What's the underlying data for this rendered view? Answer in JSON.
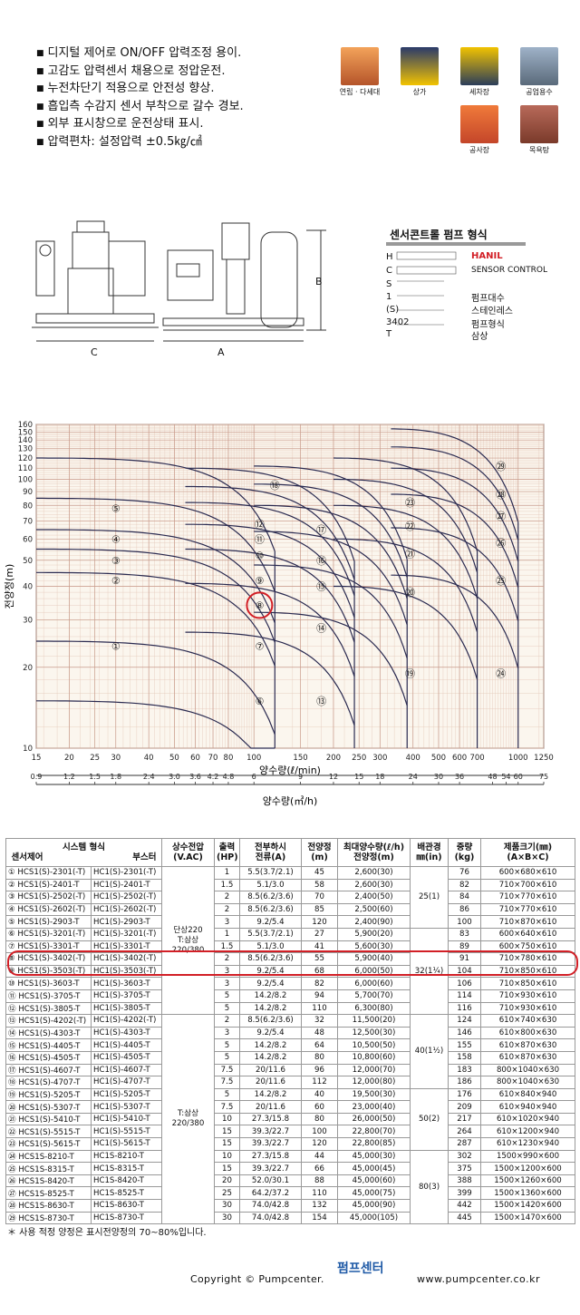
{
  "features": [
    "디지털 제어로 ON/OFF 압력조정 용이.",
    "고감도 압력센서 채용으로 정압운전.",
    "누전차단기 적용으로 안전성 향상.",
    "흡입측 수감지 센서 부착으로 갈수 경보.",
    "외부 표시창으로 운전상태 표시.",
    "압력편차: 설정압력 ±0.5㎏/㎠"
  ],
  "applications": [
    {
      "label": "연립 · 다세대",
      "color": "#b5542a"
    },
    {
      "label": "상가",
      "color": "#f2c300"
    },
    {
      "label": "세차장",
      "color": "#2b3d5a"
    },
    {
      "label": "공업용수",
      "color": "#5a6a7a"
    },
    {
      "label": "공사장",
      "color": "#c4462a"
    },
    {
      "label": "목욕탕",
      "color": "#7a3a2a"
    }
  ],
  "drawing": {
    "label_b": "B",
    "label_c": "C",
    "label_a": "A"
  },
  "model_code": {
    "title": "센서콘트롤 펌프 형식",
    "rows": [
      {
        "code": "H",
        "desc": "HANIL",
        "accent": "#d21f26"
      },
      {
        "code": "C",
        "desc": "SENSOR CONTROL"
      },
      {
        "code": "S",
        "desc": ""
      },
      {
        "code": "1",
        "desc": "펌프대수"
      },
      {
        "code": "(S)",
        "desc": "스테인레스"
      },
      {
        "code": "3402",
        "desc": "펌프형식"
      },
      {
        "code": "T",
        "desc": "삼상"
      }
    ]
  },
  "chart_data": {
    "type": "performance-curve",
    "ylabel": "전양정(m)",
    "yticks": [
      10,
      20,
      30,
      40,
      50,
      60,
      70,
      80,
      90,
      100,
      110,
      120,
      130,
      140,
      150,
      160
    ],
    "y_scale": "log",
    "ylim": [
      10,
      160
    ],
    "xlabel_top": "양수량(ℓ/min)",
    "xticks_top": [
      15,
      20,
      25,
      30,
      40,
      50,
      60,
      70,
      80,
      100,
      150,
      200,
      250,
      300,
      400,
      500,
      600,
      700,
      1000,
      1250
    ],
    "xlabel_bottom": "양수량(㎥/h)",
    "xticks_bottom": [
      "0.9",
      "1.2",
      "1.5",
      "1.8",
      "2.4",
      "3.0",
      "3.6",
      "4.2",
      "4.8",
      "6",
      "9",
      "12",
      "15",
      "18",
      "24",
      "30",
      "36",
      "48",
      "54",
      "60",
      "75"
    ],
    "x_scale": "log",
    "xlim": [
      15,
      1250
    ],
    "grid": true,
    "highlight": "⑧",
    "regions": [
      {
        "label": "①",
        "x": 30,
        "y": 24
      },
      {
        "label": "②",
        "x": 30,
        "y": 42
      },
      {
        "label": "③",
        "x": 30,
        "y": 50
      },
      {
        "label": "④",
        "x": 30,
        "y": 60
      },
      {
        "label": "⑤",
        "x": 30,
        "y": 78
      },
      {
        "label": "⑥",
        "x": 105,
        "y": 15
      },
      {
        "label": "⑦",
        "x": 105,
        "y": 24
      },
      {
        "label": "⑧",
        "x": 105,
        "y": 34
      },
      {
        "label": "⑨",
        "x": 105,
        "y": 42
      },
      {
        "label": "⑩",
        "x": 105,
        "y": 52
      },
      {
        "label": "⑪",
        "x": 105,
        "y": 60
      },
      {
        "label": "⑫",
        "x": 105,
        "y": 68
      },
      {
        "label": "⑬",
        "x": 180,
        "y": 15
      },
      {
        "label": "⑭",
        "x": 180,
        "y": 28
      },
      {
        "label": "⑮",
        "x": 180,
        "y": 40
      },
      {
        "label": "⑯",
        "x": 180,
        "y": 50
      },
      {
        "label": "⑰",
        "x": 180,
        "y": 65
      },
      {
        "label": "⑱",
        "x": 120,
        "y": 95
      },
      {
        "label": "⑲",
        "x": 390,
        "y": 19
      },
      {
        "label": "⑳",
        "x": 390,
        "y": 38
      },
      {
        "label": "㉑",
        "x": 390,
        "y": 53
      },
      {
        "label": "㉒",
        "x": 390,
        "y": 67
      },
      {
        "label": "㉓",
        "x": 390,
        "y": 82
      },
      {
        "label": "㉔",
        "x": 860,
        "y": 19
      },
      {
        "label": "㉕",
        "x": 860,
        "y": 42
      },
      {
        "label": "㉖",
        "x": 860,
        "y": 58
      },
      {
        "label": "㉗",
        "x": 860,
        "y": 73
      },
      {
        "label": "㉘",
        "x": 860,
        "y": 88
      },
      {
        "label": "㉙",
        "x": 860,
        "y": 112
      }
    ]
  },
  "table": {
    "header": {
      "system_type": "시스템 형식",
      "sensor": "센서제어",
      "booster": "부스터",
      "power": "상수전압",
      "power_unit": "(V.AC)",
      "output": "출력",
      "output_unit": "(HP)",
      "current": "전부하시",
      "current2": "전류(A)",
      "head": "전양정",
      "head_unit": "(m)",
      "flow": "최대양수량(ℓ/h)",
      "flow2": "전양정(m)",
      "pipe": "배관경",
      "pipe_unit": "㎜(in)",
      "weight": "중량",
      "weight_unit": "(kg)",
      "size": "제품크기(㎜)",
      "size_unit": "(A×B×C)"
    },
    "rows": [
      [
        "① HCS1(S)-2301(-T)",
        "HC1(S)-2301(-T)",
        "1",
        "5.5(3.7/2.1)",
        "45",
        "2,600(30)",
        "76",
        "600×680×610"
      ],
      [
        "② HCS1(S)-2401-T",
        "HC1(S)-2401-T",
        "1.5",
        "5.1/3.0",
        "58",
        "2,600(30)",
        "82",
        "710×700×610"
      ],
      [
        "③ HCS1(S)-2502(-T)",
        "HC1(S)-2502(-T)",
        "2",
        "8.5(6.2/3.6)",
        "70",
        "2,400(50)",
        "84",
        "710×770×610"
      ],
      [
        "④ HCS1(S)-2602(-T)",
        "HC1(S)-2602(-T)",
        "2",
        "8.5(6.2/3.6)",
        "85",
        "2,500(60)",
        "86",
        "710×770×610"
      ],
      [
        "⑤ HCS1(S)-2903-T",
        "HC1(S)-2903-T",
        "3",
        "9.2/5.4",
        "120",
        "2,400(90)",
        "100",
        "710×870×610"
      ],
      [
        "⑥ HCS1(S)-3201(-T)",
        "HC1(S)-3201(-T)",
        "1",
        "5.5(3.7/2.1)",
        "27",
        "5,900(20)",
        "83",
        "600×640×610"
      ],
      [
        "⑦ HCS1(S)-3301-T",
        "HC1(S)-3301-T",
        "1.5",
        "5.1/3.0",
        "41",
        "5,600(30)",
        "89",
        "600×750×610"
      ],
      [
        "⑧ HCS1(S)-3402(-T)",
        "HC1(S)-3402(-T)",
        "2",
        "8.5(6.2/3.6)",
        "55",
        "5,900(40)",
        "91",
        "710×780×610"
      ],
      [
        "⑨ HCS1(S)-3503(-T)",
        "HC1(S)-3503(-T)",
        "3",
        "9.2/5.4",
        "68",
        "6,000(50)",
        "104",
        "710×850×610"
      ],
      [
        "⑩ HCS1(S)-3603-T",
        "HC1(S)-3603-T",
        "3",
        "9.2/5.4",
        "82",
        "6,000(60)",
        "106",
        "710×850×610"
      ],
      [
        "⑪ HCS1(S)-3705-T",
        "HC1(S)-3705-T",
        "5",
        "14.2/8.2",
        "94",
        "5,700(70)",
        "114",
        "710×930×610"
      ],
      [
        "⑫ HCS1(S)-3805-T",
        "HC1(S)-3805-T",
        "5",
        "14.2/8.2",
        "110",
        "6,300(80)",
        "116",
        "710×930×610"
      ],
      [
        "⑬ HCS1(S)-4202(-T)",
        "HC1(S)-4202(-T)",
        "2",
        "8.5(6.2/3.6)",
        "32",
        "11,500(20)",
        "124",
        "610×740×630"
      ],
      [
        "⑭ HCS1(S)-4303-T",
        "HC1(S)-4303-T",
        "3",
        "9.2/5.4",
        "48",
        "12,500(30)",
        "146",
        "610×800×630"
      ],
      [
        "⑮ HCS1(S)-4405-T",
        "HC1(S)-4405-T",
        "5",
        "14.2/8.2",
        "64",
        "10,500(50)",
        "155",
        "610×870×630"
      ],
      [
        "⑯ HCS1(S)-4505-T",
        "HC1(S)-4505-T",
        "5",
        "14.2/8.2",
        "80",
        "10,800(60)",
        "158",
        "610×870×630"
      ],
      [
        "⑰ HCS1(S)-4607-T",
        "HC1(S)-4607-T",
        "7.5",
        "20/11.6",
        "96",
        "12,000(70)",
        "183",
        "800×1040×630"
      ],
      [
        "⑱ HCS1(S)-4707-T",
        "HC1(S)-4707-T",
        "7.5",
        "20/11.6",
        "112",
        "12,000(80)",
        "186",
        "800×1040×630"
      ],
      [
        "⑲ HCS1(S)-5205-T",
        "HC1(S)-5205-T",
        "5",
        "14.2/8.2",
        "40",
        "19,500(30)",
        "176",
        "610×840×940"
      ],
      [
        "⑳ HCS1(S)-5307-T",
        "HC1(S)-5307-T",
        "7.5",
        "20/11.6",
        "60",
        "23,000(40)",
        "209",
        "610×940×940"
      ],
      [
        "㉑ HCS1(S)-5410-T",
        "HC1(S)-5410-T",
        "10",
        "27.3/15.8",
        "80",
        "26,000(50)",
        "217",
        "610×1020×940"
      ],
      [
        "㉒ HCS1(S)-5515-T",
        "HC1(S)-5515-T",
        "15",
        "39.3/22.7",
        "100",
        "22,800(70)",
        "264",
        "610×1200×940"
      ],
      [
        "㉓ HCS1(S)-5615-T",
        "HC1(S)-5615-T",
        "15",
        "39.3/22.7",
        "120",
        "22,800(85)",
        "287",
        "610×1230×940"
      ],
      [
        "㉔ HCS1S-8210-T",
        "HC1S-8210-T",
        "10",
        "27.3/15.8",
        "44",
        "45,000(30)",
        "302",
        "1500×990×600"
      ],
      [
        "㉕ HCS1S-8315-T",
        "HC1S-8315-T",
        "15",
        "39.3/22.7",
        "66",
        "45,000(45)",
        "375",
        "1500×1200×600"
      ],
      [
        "㉖ HCS1S-8420-T",
        "HC1S-8420-T",
        "20",
        "52.0/30.1",
        "88",
        "45,000(60)",
        "388",
        "1500×1260×600"
      ],
      [
        "㉗ HCS1S-8525-T",
        "HC1S-8525-T",
        "25",
        "64.2/37.2",
        "110",
        "45,000(75)",
        "399",
        "1500×1360×600"
      ],
      [
        "㉘ HCS1S-8630-T",
        "HC1S-8630-T",
        "30",
        "74.0/42.8",
        "132",
        "45,000(90)",
        "442",
        "1500×1420×600"
      ],
      [
        "㉙ HCS1S-8730-T",
        "HC1S-8730-T",
        "30",
        "74.0/42.8",
        "154",
        "45,000(105)",
        "445",
        "1500×1470×600"
      ]
    ],
    "power_groups": [
      "단상220\nT:삼상\n220/380",
      "T:삼상\n220/380"
    ],
    "pipe_groups": [
      "25(1)",
      "32(1¼)",
      "40(1½)",
      "50(2)",
      "80(3)"
    ]
  },
  "note": "＊ 사용 적정 양정은 표시전양정의 70~80%입니다.",
  "footer": {
    "logo": "펌프센터",
    "copyright": "Copyright © Pumpcenter.",
    "url": "www.pumpcenter.co.kr"
  }
}
